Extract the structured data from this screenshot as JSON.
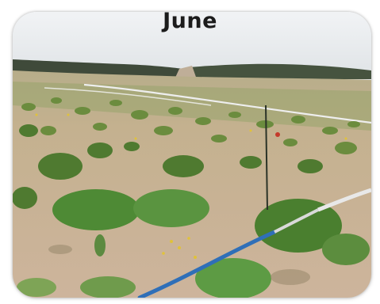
{
  "caption": {
    "text": "June"
  },
  "photo": {
    "subject": "",
    "colors": {
      "sky": "#e9ecef",
      "hills": "#3f4a3a",
      "soil": "#c9b29a",
      "shrub": "#5c8a3a",
      "pipe": "#2f6fb8",
      "pipe_white": "#e8e8e8"
    }
  }
}
